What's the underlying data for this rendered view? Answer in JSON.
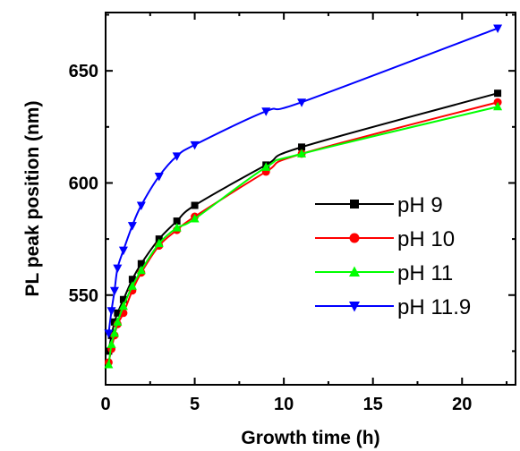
{
  "chart_data": {
    "type": "line",
    "title": "",
    "xlabel": "Growth time (h)",
    "ylabel": "PL peak position (nm)",
    "xlim": [
      0,
      23
    ],
    "ylim": [
      510,
      676
    ],
    "xticks": [
      0,
      5,
      10,
      15,
      20
    ],
    "yticks": [
      550,
      600,
      650
    ],
    "grid": false,
    "legend_position": "center-right",
    "series": [
      {
        "name": "pH 9",
        "color": "#000000",
        "marker": "square",
        "x": [
          0.17,
          0.33,
          0.5,
          0.67,
          1,
          1.5,
          2,
          3,
          4,
          5,
          9,
          11,
          22
        ],
        "y": [
          525,
          532,
          538,
          542,
          548,
          557,
          564,
          575,
          583,
          590,
          608,
          616,
          640
        ]
      },
      {
        "name": "pH 10",
        "color": "#ff0000",
        "marker": "circle",
        "x": [
          0.17,
          0.33,
          0.5,
          0.67,
          1,
          1.5,
          2,
          3,
          4,
          5,
          9,
          11,
          22
        ],
        "y": [
          520,
          526,
          532,
          537,
          542,
          552,
          560,
          572,
          579,
          585,
          605,
          613,
          636
        ]
      },
      {
        "name": "pH 11",
        "color": "#00ff00",
        "marker": "triangle-up",
        "x": [
          0.17,
          0.33,
          0.5,
          0.67,
          1,
          1.5,
          2,
          3,
          4,
          5,
          9,
          11,
          22
        ],
        "y": [
          519,
          528,
          533,
          538,
          545,
          554,
          561,
          573,
          580,
          584,
          607,
          613,
          634
        ]
      },
      {
        "name": "pH 11.9",
        "color": "#0000ff",
        "marker": "triangle-down",
        "x": [
          0.17,
          0.33,
          0.5,
          0.67,
          1,
          1.5,
          2,
          3,
          4,
          5,
          9,
          11,
          22
        ],
        "y": [
          533,
          543,
          552,
          562,
          570,
          581,
          590,
          603,
          612,
          617,
          632,
          636,
          669
        ]
      }
    ]
  }
}
